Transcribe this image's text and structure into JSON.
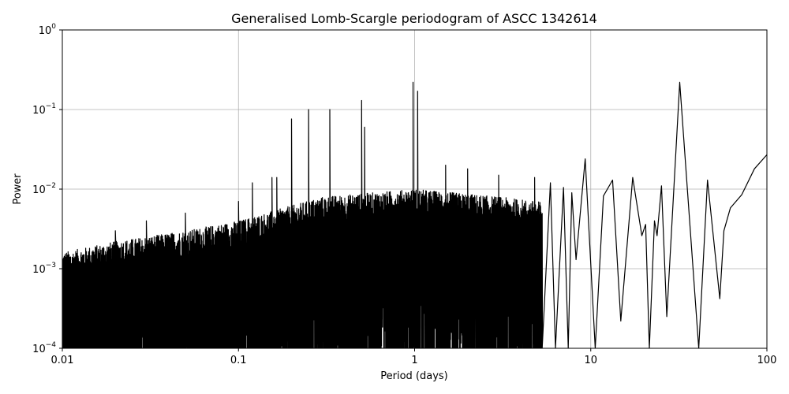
{
  "chart_data": {
    "type": "line",
    "title": "Generalised Lomb-Scargle periodogram of ASCC 1342614",
    "xlabel": "Period (days)",
    "ylabel": "Power",
    "xscale": "log",
    "yscale": "log",
    "xlim": [
      0.01,
      100
    ],
    "ylim": [
      0.0001,
      1
    ],
    "grid": true,
    "line_color": "#000000",
    "xticks": [
      {
        "value": 0.01,
        "label": "0.01"
      },
      {
        "value": 0.1,
        "label": "0.1"
      },
      {
        "value": 1,
        "label": "1"
      },
      {
        "value": 10,
        "label": "10"
      },
      {
        "value": 100,
        "label": "100"
      }
    ],
    "yticks": [
      {
        "value": 0.0001,
        "base": "10",
        "exp": "−4"
      },
      {
        "value": 0.001,
        "base": "10",
        "exp": "−3"
      },
      {
        "value": 0.01,
        "base": "10",
        "exp": "−2"
      },
      {
        "value": 0.1,
        "base": "10",
        "exp": "−1"
      },
      {
        "value": 1,
        "base": "10",
        "exp": "0"
      }
    ],
    "series": [
      {
        "peaks": [
          [
            0.02,
            0.003
          ],
          [
            0.03,
            0.004
          ],
          [
            0.05,
            0.005
          ],
          [
            0.1,
            0.007
          ],
          [
            0.12,
            0.012
          ],
          [
            0.155,
            0.014
          ],
          [
            0.165,
            0.014
          ],
          [
            0.2,
            0.076
          ],
          [
            0.25,
            0.1
          ],
          [
            0.33,
            0.1
          ],
          [
            0.5,
            0.13
          ],
          [
            0.52,
            0.06
          ],
          [
            0.98,
            0.22
          ],
          [
            1.04,
            0.17
          ],
          [
            1.5,
            0.02
          ],
          [
            2,
            0.018
          ],
          [
            3,
            0.015
          ],
          [
            4.8,
            0.014
          ]
        ],
        "smooth_peaks": [
          [
            5.9,
            0.012
          ],
          [
            7.0,
            0.0105
          ],
          [
            7.8,
            0.009
          ],
          [
            9.3,
            0.024
          ],
          [
            11.8,
            0.0082
          ],
          [
            13.3,
            0.013
          ],
          [
            17.3,
            0.014
          ],
          [
            20.5,
            0.0036
          ],
          [
            23.0,
            0.004
          ],
          [
            25.2,
            0.011
          ],
          [
            32.0,
            0.22
          ],
          [
            46.0,
            0.013
          ]
        ],
        "smooth_troughs": [
          [
            6.3,
            0.0001
          ],
          [
            7.45,
            0.0001
          ],
          [
            8.25,
            0.0013
          ],
          [
            10.6,
            0.0001
          ],
          [
            14.8,
            0.00022
          ],
          [
            19.5,
            0.0026
          ],
          [
            21.5,
            0.0001
          ],
          [
            23.8,
            0.0026
          ],
          [
            27.0,
            0.00025
          ],
          [
            41.0,
            0.0001
          ],
          [
            54.0,
            0.00042
          ]
        ],
        "tail": [
          [
            57,
            0.003
          ],
          [
            62,
            0.0058
          ],
          [
            72,
            0.0085
          ],
          [
            85,
            0.018
          ],
          [
            100,
            0.027
          ]
        ]
      }
    ]
  }
}
